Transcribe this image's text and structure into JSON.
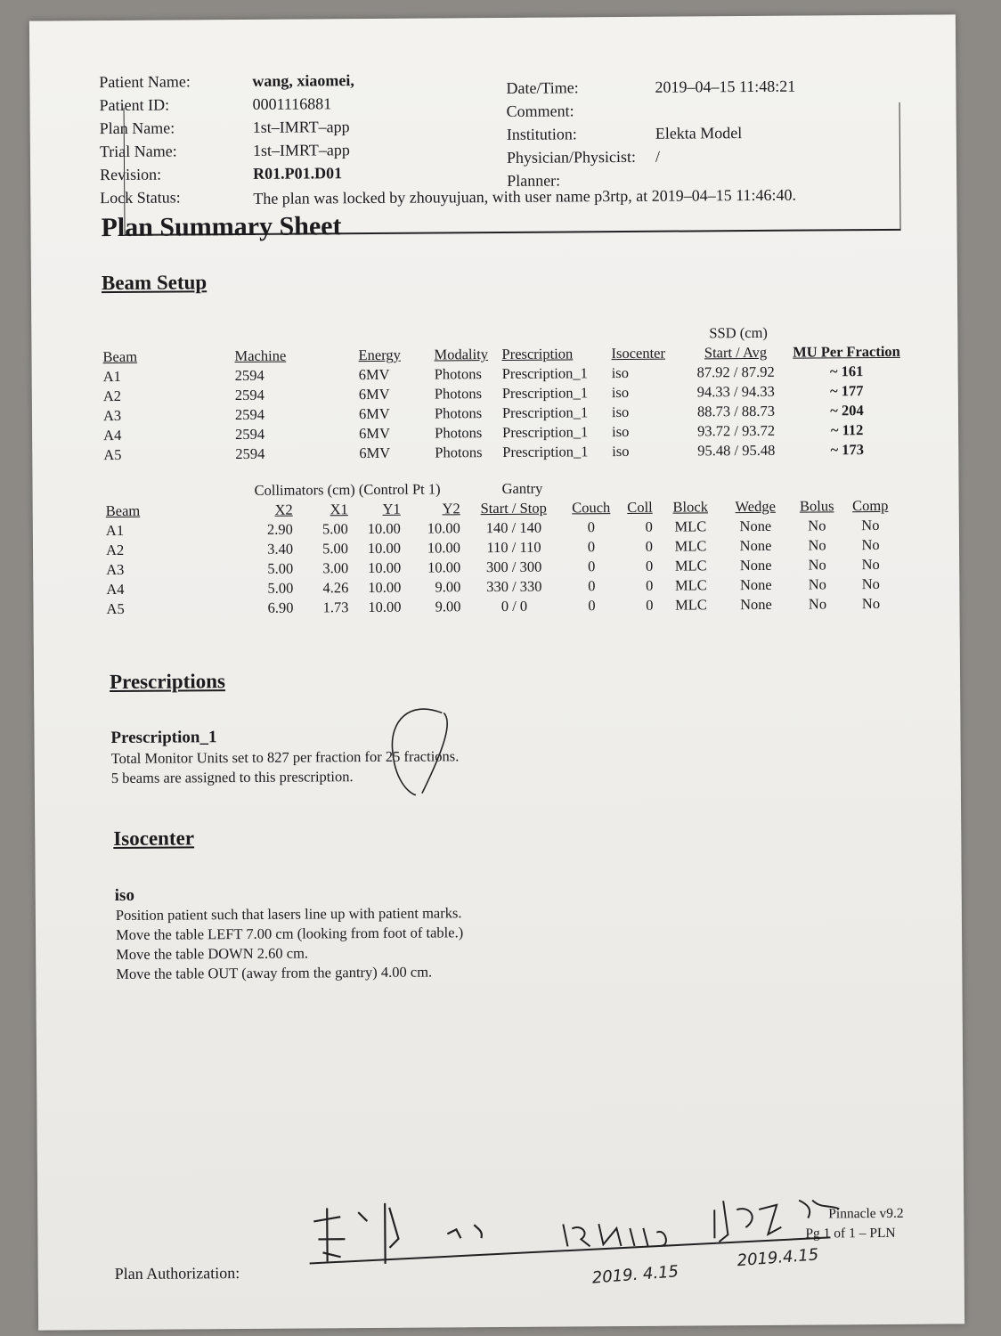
{
  "header": {
    "left": [
      {
        "label": "Patient Name:",
        "value": "wang, xiaomei,"
      },
      {
        "label": "Patient ID:",
        "value": "0001116881"
      },
      {
        "label": "Plan Name:",
        "value": "1st–IMRT–app"
      },
      {
        "label": "Trial Name:",
        "value": "1st–IMRT–app"
      },
      {
        "label": "Revision:",
        "value": "R01.P01.D01"
      }
    ],
    "right": [
      {
        "label": "Date/Time:",
        "value": "2019–04–15 11:48:21"
      },
      {
        "label": "Comment:",
        "value": ""
      },
      {
        "label": "Institution:",
        "value": "Elekta Model"
      },
      {
        "label": "Physician/Physicist:",
        "value": "/"
      },
      {
        "label": "Planner:",
        "value": ""
      }
    ],
    "lock_label": "Lock Status:",
    "lock_value": "The plan was locked by zhouyujuan, with user name p3rtp, at 2019–04–15 11:46:40."
  },
  "title": "Plan Summary Sheet",
  "beam_setup": {
    "heading": "Beam Setup",
    "ssd_group": "SSD (cm)",
    "columns": [
      "Beam",
      "Machine",
      "Energy",
      "Modality",
      "Prescription",
      "Isocenter",
      "Start / Avg",
      "MU Per Fraction"
    ],
    "rows": [
      [
        "A1",
        "2594",
        "6MV",
        "Photons",
        "Prescription_1",
        "iso",
        "87.92 / 87.92",
        "~ 161"
      ],
      [
        "A2",
        "2594",
        "6MV",
        "Photons",
        "Prescription_1",
        "iso",
        "94.33 / 94.33",
        "~ 177"
      ],
      [
        "A3",
        "2594",
        "6MV",
        "Photons",
        "Prescription_1",
        "iso",
        "88.73 / 88.73",
        "~ 204"
      ],
      [
        "A4",
        "2594",
        "6MV",
        "Photons",
        "Prescription_1",
        "iso",
        "93.72 / 93.72",
        "~ 112"
      ],
      [
        "A5",
        "2594",
        "6MV",
        "Photons",
        "Prescription_1",
        "iso",
        "95.48 / 95.48",
        "~ 173"
      ]
    ]
  },
  "collimators": {
    "group_collimators": "Collimators (cm) (Control Pt 1)",
    "group_gantry": "Gantry",
    "columns": [
      "Beam",
      "X2",
      "X1",
      "Y1",
      "Y2",
      "Start / Stop",
      "Couch",
      "Coll",
      "Block",
      "Wedge",
      "Bolus",
      "Comp"
    ],
    "rows": [
      [
        "A1",
        "2.90",
        "5.00",
        "10.00",
        "10.00",
        "140 / 140",
        "0",
        "0",
        "MLC",
        "None",
        "No",
        "No"
      ],
      [
        "A2",
        "3.40",
        "5.00",
        "10.00",
        "10.00",
        "110 / 110",
        "0",
        "0",
        "MLC",
        "None",
        "No",
        "No"
      ],
      [
        "A3",
        "5.00",
        "3.00",
        "10.00",
        "10.00",
        "300 / 300",
        "0",
        "0",
        "MLC",
        "None",
        "No",
        "No"
      ],
      [
        "A4",
        "5.00",
        "4.26",
        "10.00",
        "9.00",
        "330 / 330",
        "0",
        "0",
        "MLC",
        "None",
        "No",
        "No"
      ],
      [
        "A5",
        "6.90",
        "1.73",
        "10.00",
        "9.00",
        "0  /  0",
        "0",
        "0",
        "MLC",
        "None",
        "No",
        "No"
      ]
    ]
  },
  "prescriptions": {
    "heading": "Prescriptions",
    "name": "Prescription_1",
    "lines": [
      "Total Monitor Units set to 827 per fraction for 25 fractions.",
      "5 beams are assigned to this prescription."
    ]
  },
  "isocenter": {
    "heading": "Isocenter",
    "name": "iso",
    "lines": [
      "Position patient such that lasers line up with patient marks.",
      "Move the table LEFT 7.00 cm (looking from foot of table.)",
      "Move the table DOWN 2.60 cm.",
      "Move the table OUT (away from the gantry) 4.00 cm."
    ]
  },
  "footer": {
    "authorization_label": "Plan Authorization:",
    "software": "Pinnacle v9.2",
    "page": "Pg 1 of 1  –  PLN"
  },
  "signatures": {
    "dates": [
      "2019. 4.15",
      "2019.4.15"
    ]
  }
}
